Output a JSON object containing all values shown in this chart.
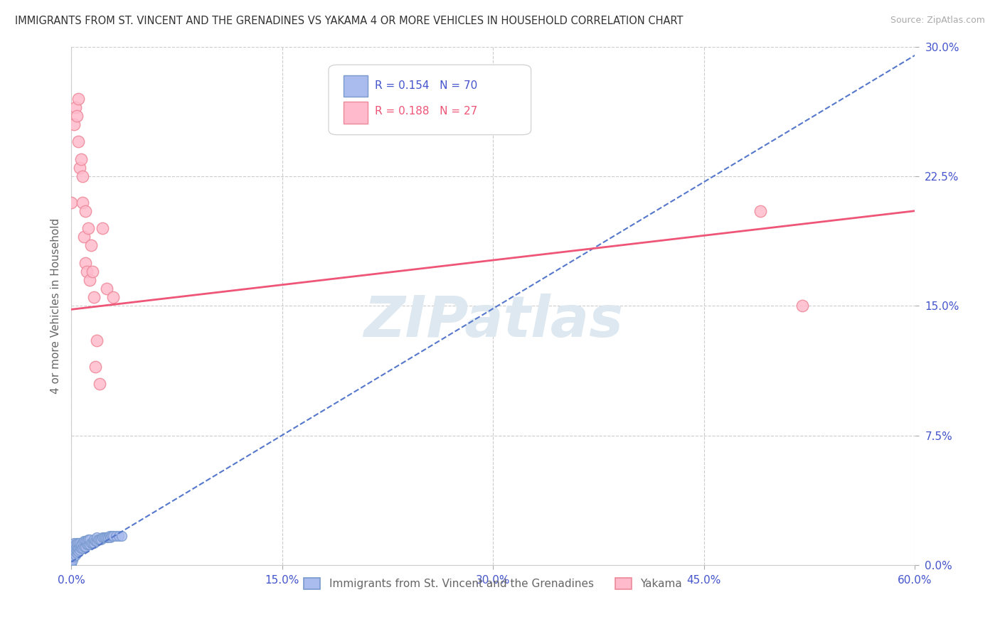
{
  "title": "IMMIGRANTS FROM ST. VINCENT AND THE GRENADINES VS YAKAMA 4 OR MORE VEHICLES IN HOUSEHOLD CORRELATION CHART",
  "source": "Source: ZipAtlas.com",
  "ylabel": "4 or more Vehicles in Household",
  "legend_blue_label": "Immigrants from St. Vincent and the Grenadines",
  "legend_pink_label": "Yakama",
  "blue_R": 0.154,
  "blue_N": 70,
  "pink_R": 0.188,
  "pink_N": 27,
  "xlim": [
    0.0,
    0.6
  ],
  "ylim": [
    0.0,
    0.3
  ],
  "yticks": [
    0.0,
    0.075,
    0.15,
    0.225,
    0.3
  ],
  "ytick_labels": [
    "0.0%",
    "7.5%",
    "15.0%",
    "22.5%",
    "30.0%"
  ],
  "xticks": [
    0.0,
    0.15,
    0.3,
    0.45,
    0.6
  ],
  "xtick_labels": [
    "0.0%",
    "15.0%",
    "30.0%",
    "45.0%",
    "60.0%"
  ],
  "background_color": "#ffffff",
  "grid_color": "#cccccc",
  "title_color": "#333333",
  "axis_label_color": "#666666",
  "tick_color": "#4455cc",
  "blue_dot_color": "#aabbee",
  "blue_dot_edge": "#7799cc",
  "blue_line_color": "#5577cc",
  "pink_dot_color": "#ffbbcc",
  "pink_dot_edge": "#ee8899",
  "pink_line_color": "#ee5577",
  "watermark_color": "#dde8f0",
  "blue_x": [
    0.0,
    0.0,
    0.0,
    0.0,
    0.0,
    0.0,
    0.0,
    0.0,
    0.001,
    0.001,
    0.001,
    0.001,
    0.001,
    0.001,
    0.001,
    0.002,
    0.002,
    0.002,
    0.002,
    0.002,
    0.003,
    0.003,
    0.003,
    0.003,
    0.004,
    0.004,
    0.004,
    0.004,
    0.005,
    0.005,
    0.005,
    0.006,
    0.006,
    0.006,
    0.007,
    0.007,
    0.008,
    0.008,
    0.009,
    0.009,
    0.01,
    0.01,
    0.011,
    0.011,
    0.012,
    0.012,
    0.013,
    0.013,
    0.014,
    0.015,
    0.016,
    0.016,
    0.017,
    0.018,
    0.018,
    0.019,
    0.02,
    0.021,
    0.022,
    0.023,
    0.024,
    0.025,
    0.026,
    0.027,
    0.028,
    0.029,
    0.03,
    0.032,
    0.034,
    0.036
  ],
  "blue_y": [
    0.0,
    0.001,
    0.002,
    0.003,
    0.004,
    0.005,
    0.006,
    0.008,
    0.003,
    0.005,
    0.007,
    0.008,
    0.01,
    0.011,
    0.012,
    0.005,
    0.007,
    0.009,
    0.011,
    0.013,
    0.006,
    0.008,
    0.01,
    0.012,
    0.007,
    0.009,
    0.011,
    0.013,
    0.008,
    0.01,
    0.013,
    0.009,
    0.011,
    0.013,
    0.01,
    0.012,
    0.01,
    0.013,
    0.011,
    0.014,
    0.011,
    0.014,
    0.012,
    0.014,
    0.012,
    0.015,
    0.012,
    0.015,
    0.013,
    0.013,
    0.013,
    0.015,
    0.014,
    0.014,
    0.016,
    0.015,
    0.015,
    0.015,
    0.016,
    0.016,
    0.016,
    0.016,
    0.016,
    0.017,
    0.016,
    0.017,
    0.017,
    0.017,
    0.017,
    0.017
  ],
  "pink_x": [
    0.0,
    0.002,
    0.003,
    0.004,
    0.005,
    0.005,
    0.006,
    0.007,
    0.008,
    0.008,
    0.009,
    0.01,
    0.01,
    0.011,
    0.012,
    0.013,
    0.014,
    0.015,
    0.016,
    0.017,
    0.018,
    0.02,
    0.022,
    0.025,
    0.03,
    0.49,
    0.52
  ],
  "pink_y": [
    0.21,
    0.255,
    0.265,
    0.26,
    0.245,
    0.27,
    0.23,
    0.235,
    0.21,
    0.225,
    0.19,
    0.205,
    0.175,
    0.17,
    0.195,
    0.165,
    0.185,
    0.17,
    0.155,
    0.115,
    0.13,
    0.105,
    0.195,
    0.16,
    0.155,
    0.205,
    0.15
  ],
  "blue_trend_x": [
    0.0,
    0.6
  ],
  "blue_trend_y": [
    0.002,
    0.295
  ],
  "pink_trend_x": [
    0.0,
    0.6
  ],
  "pink_trend_y": [
    0.148,
    0.205
  ]
}
